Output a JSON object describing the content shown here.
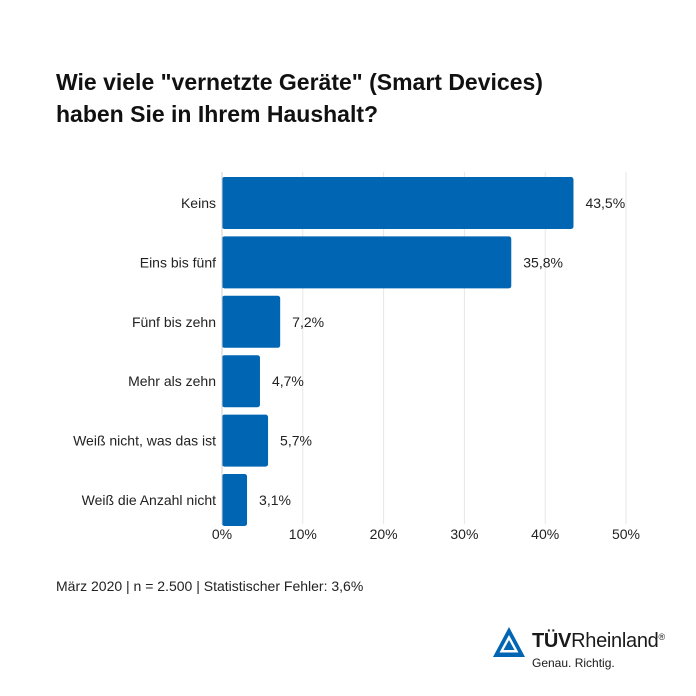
{
  "title": {
    "line1": "Wie viele \"vernetzte Geräte\" (Smart Devices)",
    "line2": "haben Sie in Ihrem Haushalt?"
  },
  "chart_data": {
    "type": "bar",
    "orientation": "horizontal",
    "title": "Wie viele \"vernetzte Geräte\" (Smart Devices) haben Sie in Ihrem Haushalt?",
    "categories": [
      "Keins",
      "Eins bis fünf",
      "Fünf bis zehn",
      "Mehr als zehn",
      "Weiß nicht, was das ist",
      "Weiß die Anzahl nicht"
    ],
    "values": [
      43.5,
      35.8,
      7.2,
      4.7,
      5.7,
      3.1
    ],
    "value_labels": [
      "43,5%",
      "35,8%",
      "7,2%",
      "4,7%",
      "5,7%",
      "3,1%"
    ],
    "xlim": [
      0,
      50
    ],
    "x_ticks": [
      0,
      10,
      20,
      30,
      40,
      50
    ],
    "x_tick_labels": [
      "0%",
      "10%",
      "20%",
      "30%",
      "40%",
      "50%"
    ],
    "grid": true,
    "bar_color": "#0066b3",
    "grid_color": "#e6e6e6"
  },
  "footnote": "März 2020 | n = 2.500 | Statistischer Fehler: 3,6%",
  "logo": {
    "brand_bold": "TÜV",
    "brand_regular": "Rheinland",
    "registered": "®",
    "tagline": "Genau. Richtig.",
    "icon": "tuv-triangle-logo-icon",
    "color": "#0066b3"
  }
}
